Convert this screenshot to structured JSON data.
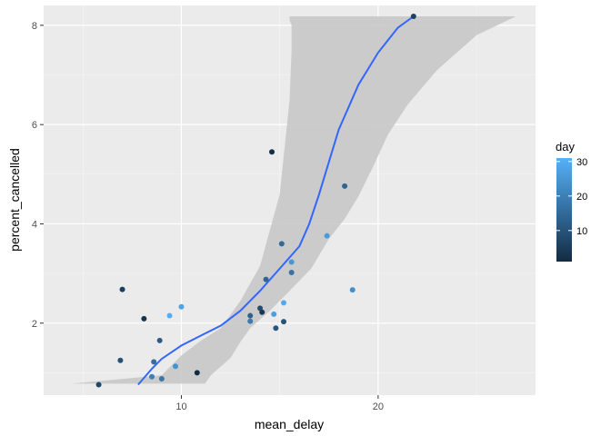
{
  "chart_data": {
    "type": "scatter",
    "xlabel": "mean_delay",
    "ylabel": "percent_cancelled",
    "xlim": [
      3.0,
      28.0
    ],
    "ylim": [
      0.55,
      8.4
    ],
    "x_ticks": [
      10,
      20
    ],
    "x_tick_labels": [
      "10",
      "20"
    ],
    "y_ticks": [
      2,
      4,
      6,
      8
    ],
    "y_tick_labels": [
      "2",
      "4",
      "6",
      "8"
    ],
    "grid": true,
    "panel_background": "#ebebeb",
    "smooth_line_color": "#3366ff",
    "ribbon_color": "#c8c8c8",
    "legend": {
      "title": "day",
      "position": "right",
      "range": [
        1,
        31
      ],
      "ticks": [
        10,
        20,
        30
      ],
      "tick_labels": [
        "10",
        "20",
        "30"
      ],
      "color_low": "#132b43",
      "color_high": "#56b1f7"
    },
    "points": [
      {
        "x": 5.8,
        "y": 0.76,
        "day": 7
      },
      {
        "x": 6.9,
        "y": 1.25,
        "day": 9
      },
      {
        "x": 7.0,
        "y": 2.68,
        "day": 5
      },
      {
        "x": 8.1,
        "y": 2.09,
        "day": 3
      },
      {
        "x": 8.5,
        "y": 0.92,
        "day": 20
      },
      {
        "x": 8.6,
        "y": 1.22,
        "day": 16
      },
      {
        "x": 8.9,
        "y": 1.65,
        "day": 12
      },
      {
        "x": 9.0,
        "y": 0.88,
        "day": 18
      },
      {
        "x": 9.4,
        "y": 2.15,
        "day": 30
      },
      {
        "x": 9.7,
        "y": 1.13,
        "day": 24
      },
      {
        "x": 10.0,
        "y": 2.33,
        "day": 28
      },
      {
        "x": 10.8,
        "y": 1.0,
        "day": 1
      },
      {
        "x": 13.5,
        "y": 2.15,
        "day": 13
      },
      {
        "x": 13.5,
        "y": 2.04,
        "day": 19
      },
      {
        "x": 14.0,
        "y": 2.3,
        "day": 8
      },
      {
        "x": 14.1,
        "y": 2.22,
        "day": 4
      },
      {
        "x": 14.3,
        "y": 2.88,
        "day": 14
      },
      {
        "x": 14.6,
        "y": 5.45,
        "day": 2
      },
      {
        "x": 14.7,
        "y": 2.18,
        "day": 27
      },
      {
        "x": 14.8,
        "y": 1.9,
        "day": 11
      },
      {
        "x": 15.1,
        "y": 3.6,
        "day": 15
      },
      {
        "x": 15.2,
        "y": 2.03,
        "day": 10
      },
      {
        "x": 15.2,
        "y": 2.41,
        "day": 29
      },
      {
        "x": 15.6,
        "y": 3.23,
        "day": 25
      },
      {
        "x": 15.6,
        "y": 3.02,
        "day": 17
      },
      {
        "x": 17.4,
        "y": 3.76,
        "day": 26
      },
      {
        "x": 18.3,
        "y": 4.76,
        "day": 14
      },
      {
        "x": 18.7,
        "y": 2.67,
        "day": 23
      },
      {
        "x": 21.8,
        "y": 8.18,
        "day": 6
      }
    ],
    "smooth": {
      "x": [
        7.8,
        8.5,
        9.0,
        10.0,
        11.0,
        12.0,
        13.0,
        14.0,
        15.0,
        16.0,
        16.5,
        17.0,
        17.5,
        18.0,
        19.0,
        20.0,
        21.0,
        21.8
      ],
      "y": [
        0.76,
        1.08,
        1.28,
        1.55,
        1.75,
        1.95,
        2.25,
        2.65,
        3.1,
        3.55,
        4.0,
        4.6,
        5.25,
        5.9,
        6.8,
        7.45,
        7.95,
        8.18
      ],
      "lower": [
        0.76,
        0.76,
        0.76,
        0.95,
        1.2,
        1.5,
        1.85,
        2.2,
        2.55,
        2.9,
        3.1,
        3.3,
        3.55,
        3.9,
        4.9,
        5.7,
        6.4,
        6.8
      ],
      "upper": [
        0.76,
        0.76,
        0.76,
        0.95,
        1.2,
        1.5,
        1.85,
        2.2,
        2.55,
        2.9,
        3.1,
        3.3,
        3.55,
        3.9,
        4.9,
        5.7,
        6.4,
        6.8
      ]
    },
    "ribbon": {
      "upper_x": [
        4.4,
        9.0,
        10.0,
        11.0,
        12.0,
        13.0,
        14.0,
        15.0,
        15.5,
        15.6,
        15.6,
        15.5,
        15.5,
        15.6
      ],
      "upper_y": [
        0.78,
        0.95,
        1.35,
        1.65,
        1.9,
        2.45,
        3.15,
        4.6,
        6.5,
        7.5,
        8.0,
        8.1,
        8.18,
        8.18
      ],
      "lower_x": [
        27.0,
        25.0,
        23.0,
        21.5,
        20.5,
        19.8,
        19.0,
        18.3,
        17.5,
        16.6,
        15.5,
        14.5,
        13.5,
        13.0,
        12.5,
        11.5,
        11.2
      ],
      "lower_y": [
        8.18,
        7.8,
        7.1,
        6.4,
        5.8,
        5.2,
        4.55,
        4.1,
        3.7,
        3.1,
        2.65,
        2.25,
        1.9,
        1.62,
        1.3,
        0.95,
        0.78
      ]
    }
  }
}
